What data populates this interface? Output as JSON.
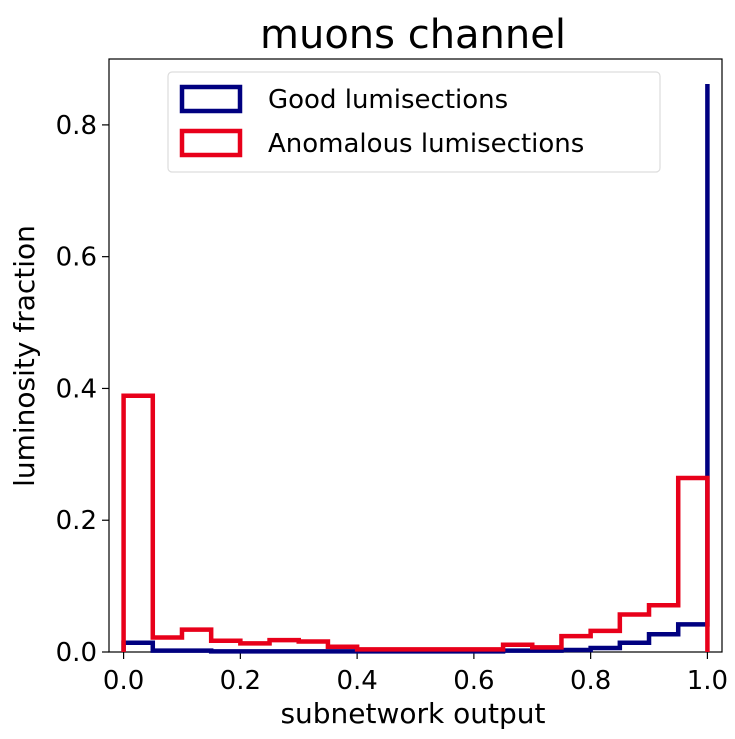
{
  "chart_data": {
    "type": "histogram",
    "title": "muons channel",
    "xlabel": "subnetwork output",
    "ylabel": "luminosity fraction",
    "xlim": [
      -0.025,
      1.025
    ],
    "ylim": [
      0.0,
      0.9
    ],
    "xticks": [
      "0.0",
      "0.2",
      "0.4",
      "0.6",
      "0.8",
      "1.0"
    ],
    "yticks": [
      "0.0",
      "0.2",
      "0.4",
      "0.6",
      "0.8"
    ],
    "bin_edges": [
      0.0,
      0.05,
      0.1,
      0.15,
      0.2,
      0.25,
      0.3,
      0.35,
      0.4,
      0.45,
      0.5,
      0.55,
      0.6,
      0.65,
      0.7,
      0.75,
      0.8,
      0.85,
      0.9,
      0.95,
      1.0
    ],
    "legend_position": "upper center",
    "series": [
      {
        "name": "Good lumisections",
        "color": "#000080",
        "values": [
          0.014,
          0.002,
          0.002,
          0.001,
          0.001,
          0.001,
          0.001,
          0.001,
          0.001,
          0.001,
          0.001,
          0.001,
          0.001,
          0.002,
          0.002,
          0.003,
          0.006,
          0.014,
          0.027,
          0.042
        ]
      },
      {
        "name": "Good lumisections (last bin)",
        "hidden_legend": true,
        "color": "#000080",
        "values": []
      },
      {
        "name": "Anomalous lumisections",
        "color": "#e8001a",
        "values": [
          0.389,
          0.022,
          0.034,
          0.017,
          0.013,
          0.018,
          0.016,
          0.008,
          0.004,
          0.004,
          0.004,
          0.004,
          0.004,
          0.011,
          0.007,
          0.024,
          0.032,
          0.057,
          0.071,
          0.264
        ]
      }
    ],
    "good_last_bin": 0.862
  }
}
